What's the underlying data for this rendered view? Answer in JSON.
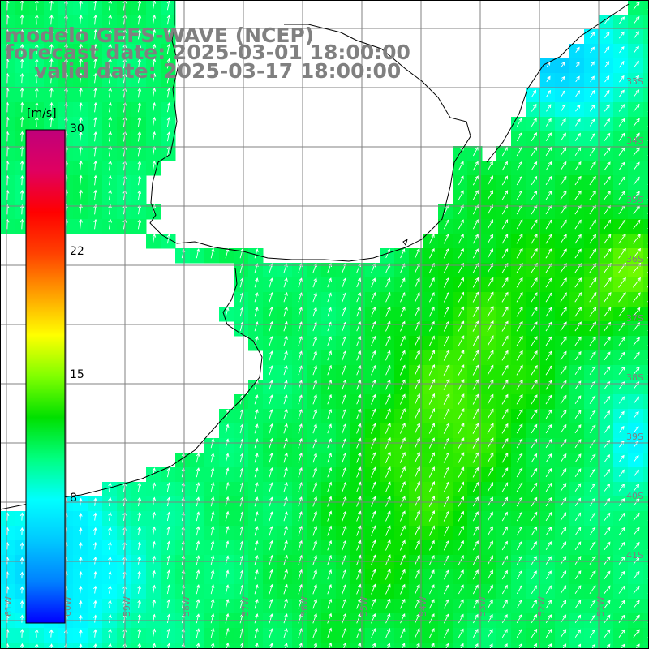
{
  "title": {
    "line1": "modelo GEFS-WAVE (NCEP)",
    "line2": "forecast date: 2025-03-01 18:00:00",
    "line3": "valid date: 2025-03-17 18:00:00"
  },
  "colorbar": {
    "unit": "[m/s]",
    "ticks": [
      "30",
      "22",
      "15",
      "8"
    ],
    "tick_values": [
      30,
      22,
      15,
      8
    ],
    "range": [
      0,
      30
    ],
    "colors": [
      "#0000ff",
      "#0080ff",
      "#00c8ff",
      "#00ffff",
      "#00ff80",
      "#00e000",
      "#80ff00",
      "#ffff00",
      "#ffa000",
      "#ff4000",
      "#ff0000",
      "#e00060",
      "#c0007a"
    ]
  },
  "axes": {
    "lon_labels": [
      "61W",
      "60W",
      "59W",
      "58W",
      "57W",
      "56W",
      "55W",
      "54W",
      "53W",
      "52W",
      "51W"
    ],
    "lat_labels": [
      "33S",
      "34S",
      "35S",
      "36S",
      "37S",
      "38S",
      "39S",
      "40S",
      "41S"
    ]
  },
  "field": {
    "variable": "wind speed",
    "units": "m/s",
    "background_range": [
      8,
      12
    ],
    "core_range": [
      12,
      14
    ]
  },
  "colors": {
    "grid": "#808080",
    "coast": "#000000",
    "arrow": "#ffffff",
    "title": "#808080"
  }
}
